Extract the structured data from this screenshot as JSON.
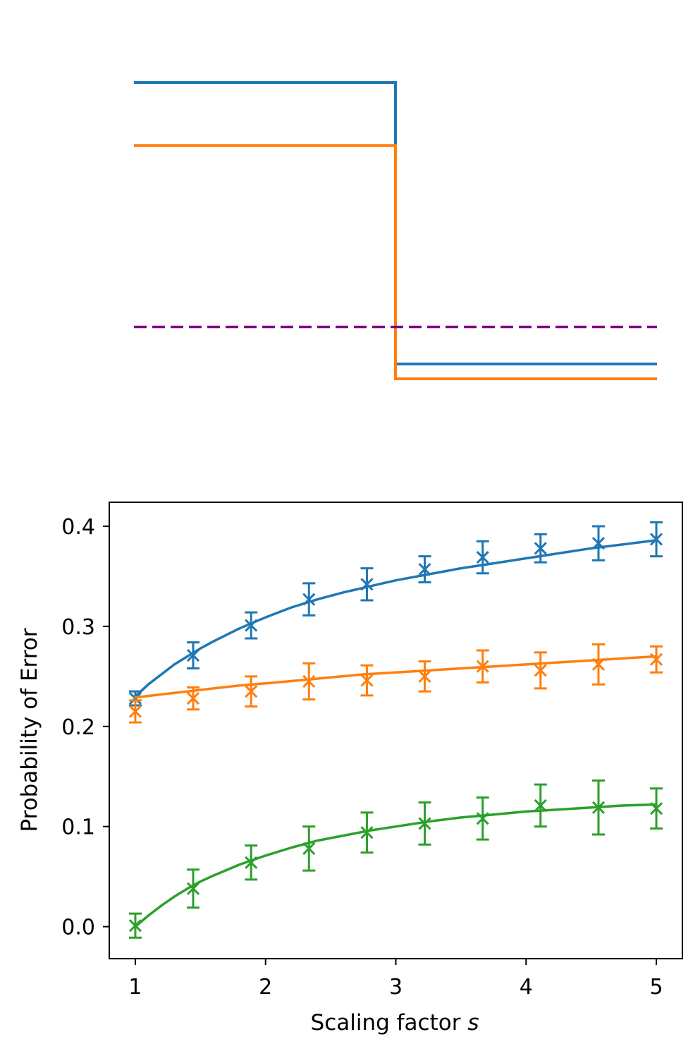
{
  "chart_data": [
    {
      "type": "line",
      "title": "",
      "xlabel": "",
      "ylabel": "",
      "axes_visible": false,
      "xlim": [
        1,
        5
      ],
      "ylim": [
        0,
        1
      ],
      "series": [
        {
          "name": "blue",
          "color": "#1f77b4",
          "style": "step",
          "x": [
            1,
            3,
            3,
            5
          ],
          "y": [
            0.92,
            0.92,
            0.16,
            0.16
          ]
        },
        {
          "name": "orange",
          "color": "#ff7f0e",
          "style": "step",
          "x": [
            1,
            3,
            3,
            5
          ],
          "y": [
            0.75,
            0.75,
            0.12,
            0.12
          ]
        },
        {
          "name": "purple",
          "color": "#800080",
          "style": "dashed",
          "x": [
            1,
            5
          ],
          "y": [
            0.26,
            0.26
          ]
        }
      ]
    },
    {
      "type": "line",
      "title": "",
      "xlabel": "Scaling factor ",
      "xlabel_italic": "s",
      "ylabel": "Probability of Error",
      "xlim": [
        0.8,
        5.2
      ],
      "ylim": [
        -0.032,
        0.424
      ],
      "xticks": [
        1,
        2,
        3,
        4,
        5
      ],
      "xtick_labels": [
        "1",
        "2",
        "3",
        "4",
        "5"
      ],
      "yticks": [
        0.0,
        0.1,
        0.2,
        0.3,
        0.4
      ],
      "ytick_labels": [
        "0.0",
        "0.1",
        "0.2",
        "0.3",
        "0.4"
      ],
      "series": [
        {
          "name": "blue",
          "color": "#1f77b4",
          "fit_x": [
            1.0,
            1.1,
            1.2,
            1.3,
            1.4,
            1.5,
            1.6,
            1.8,
            2.0,
            2.2,
            2.4,
            2.6,
            2.8,
            3.0,
            3.25,
            3.5,
            3.75,
            4.0,
            4.25,
            4.5,
            4.75,
            5.0
          ],
          "fit_y": [
            0.23,
            0.242,
            0.252,
            0.262,
            0.27,
            0.278,
            0.285,
            0.298,
            0.309,
            0.319,
            0.327,
            0.334,
            0.34,
            0.346,
            0.352,
            0.358,
            0.363,
            0.368,
            0.373,
            0.378,
            0.382,
            0.386
          ],
          "x": [
            1.0,
            1.444,
            1.889,
            2.333,
            2.778,
            3.222,
            3.667,
            4.111,
            4.556,
            5.0
          ],
          "y": [
            0.228,
            0.271,
            0.301,
            0.327,
            0.342,
            0.357,
            0.369,
            0.378,
            0.383,
            0.387
          ],
          "err": [
            0.007,
            0.013,
            0.013,
            0.016,
            0.016,
            0.013,
            0.016,
            0.014,
            0.017,
            0.017
          ]
        },
        {
          "name": "orange",
          "color": "#ff7f0e",
          "fit_x": [
            1.0,
            1.2,
            1.4,
            1.6,
            1.8,
            2.0,
            2.25,
            2.5,
            2.75,
            3.0,
            3.25,
            3.5,
            3.75,
            4.0,
            4.25,
            4.5,
            4.75,
            5.0
          ],
          "fit_y": [
            0.229,
            0.232,
            0.235,
            0.238,
            0.241,
            0.243,
            0.246,
            0.249,
            0.252,
            0.254,
            0.256,
            0.258,
            0.26,
            0.262,
            0.264,
            0.266,
            0.268,
            0.27
          ],
          "x": [
            1.0,
            1.444,
            1.889,
            2.333,
            2.778,
            3.222,
            3.667,
            4.111,
            4.556,
            5.0
          ],
          "y": [
            0.215,
            0.228,
            0.235,
            0.245,
            0.246,
            0.25,
            0.26,
            0.256,
            0.262,
            0.267
          ],
          "err": [
            0.011,
            0.011,
            0.015,
            0.018,
            0.015,
            0.015,
            0.016,
            0.018,
            0.02,
            0.013
          ]
        },
        {
          "name": "green",
          "color": "#2ca02c",
          "fit_x": [
            1.0,
            1.1,
            1.2,
            1.3,
            1.4,
            1.5,
            1.6,
            1.8,
            2.0,
            2.2,
            2.4,
            2.6,
            2.8,
            3.0,
            3.25,
            3.5,
            3.75,
            4.0,
            4.25,
            4.5,
            4.75,
            5.0
          ],
          "fit_y": [
            0.0,
            0.011,
            0.021,
            0.03,
            0.038,
            0.045,
            0.051,
            0.062,
            0.071,
            0.079,
            0.086,
            0.091,
            0.096,
            0.1,
            0.105,
            0.109,
            0.112,
            0.115,
            0.117,
            0.119,
            0.121,
            0.122
          ],
          "x": [
            1.0,
            1.444,
            1.889,
            2.333,
            2.778,
            3.222,
            3.667,
            4.111,
            4.556,
            5.0
          ],
          "y": [
            0.001,
            0.038,
            0.064,
            0.078,
            0.094,
            0.103,
            0.108,
            0.121,
            0.119,
            0.118
          ],
          "err": [
            0.012,
            0.019,
            0.017,
            0.022,
            0.02,
            0.021,
            0.021,
            0.021,
            0.027,
            0.02
          ]
        }
      ]
    }
  ]
}
